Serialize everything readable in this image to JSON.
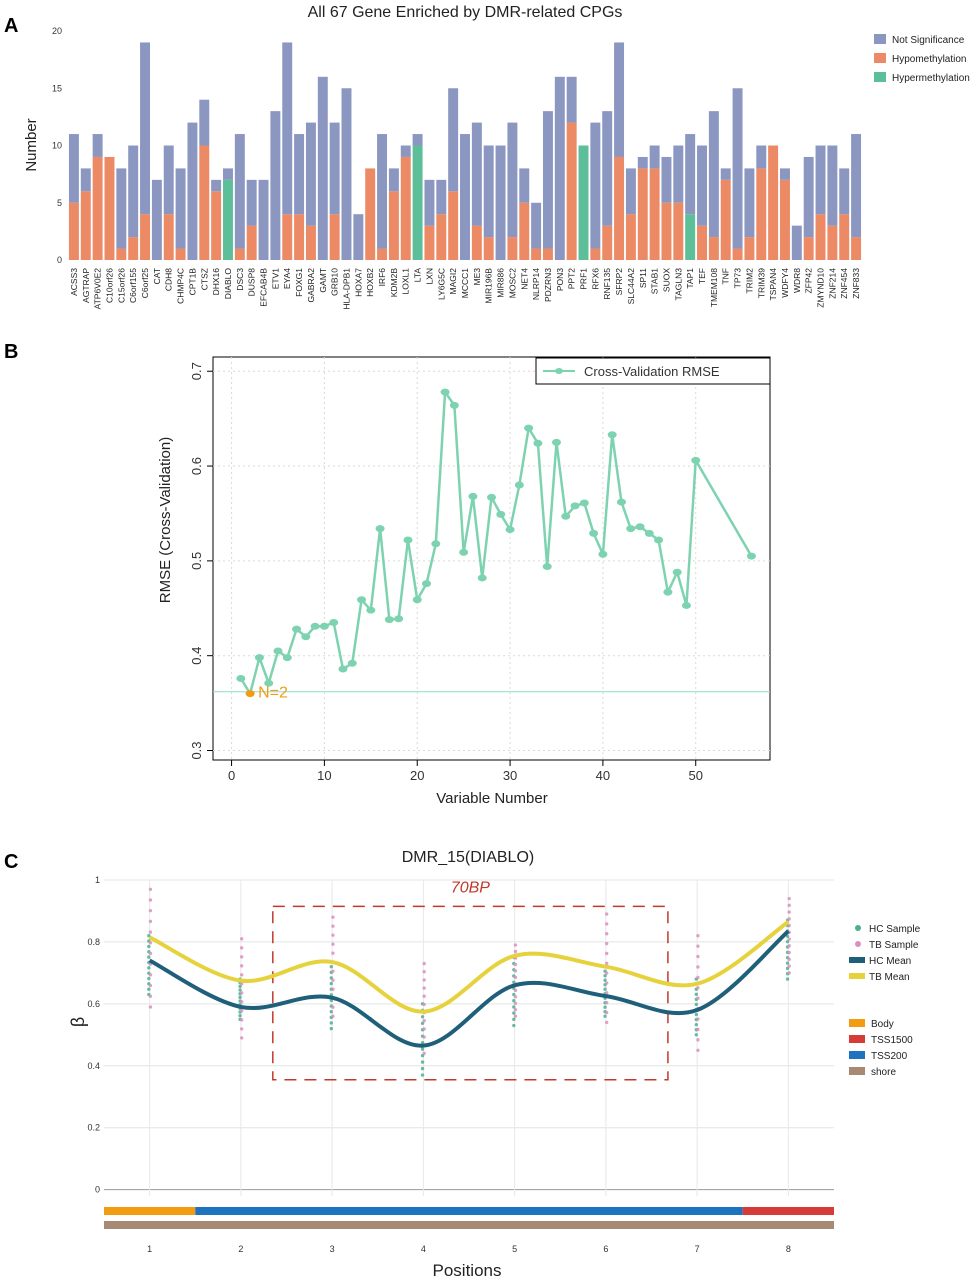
{
  "panels": {
    "a": "A",
    "b": "B",
    "c": "C"
  },
  "chart_data": [
    {
      "type": "bar",
      "stacked": true,
      "title": "All 67 Gene Enriched by DMR-related CPGs",
      "ylabel": "Number",
      "xlabel": "",
      "ylim": [
        0,
        20
      ],
      "yticks": [
        0,
        5,
        10,
        15,
        20
      ],
      "categories": [
        "ACSS3",
        "AGTRAP",
        "ATP6V0E2",
        "C10orf26",
        "C15orf26",
        "C6orf155",
        "C6orf25",
        "CAT",
        "CDH8",
        "CHMP4C",
        "CPT1B",
        "CTSZ",
        "DHX16",
        "DIABLO",
        "DSC3",
        "DUSP8",
        "EFCAB4B",
        "ETV1",
        "EYA4",
        "FOXG1",
        "GABRA2",
        "GAMT",
        "GRB10",
        "HLA-DPB1",
        "HOXA7",
        "HOXB2",
        "IRF6",
        "KDM2B",
        "LOXL1",
        "LTA",
        "LXN",
        "LY6G5C",
        "MAGI2",
        "MCCC1",
        "ME3",
        "MIR196B",
        "MIR886",
        "MOSC2",
        "NET4",
        "NLRP14",
        "PDZRN3",
        "PON3",
        "PPT2",
        "PRF1",
        "RFX6",
        "RNF135",
        "SFRP2",
        "SLC44A2",
        "SP11",
        "STAB1",
        "SUOX",
        "TAGLN3",
        "TAP1",
        "TEF",
        "TMEM108",
        "TNF",
        "TP73",
        "TRIM2",
        "TRIM39",
        "TSPAN4",
        "WDFY4",
        "WDR8",
        "ZFP42",
        "ZMYND10",
        "ZNF214",
        "ZNF454",
        "ZNF833"
      ],
      "series": [
        {
          "name": "Hypomethylation",
          "color": "#EC8A65",
          "values": [
            5,
            6,
            9,
            9,
            1,
            2,
            4,
            0,
            4,
            1,
            0,
            10,
            6,
            0,
            1,
            3,
            0,
            0,
            4,
            4,
            3,
            0,
            4,
            0,
            0,
            8,
            1,
            6,
            9,
            0,
            3,
            4,
            6,
            0,
            3,
            2,
            0,
            2,
            5,
            1,
            1,
            0,
            12,
            0,
            1,
            3,
            9,
            4,
            8,
            8,
            5,
            5,
            0,
            3,
            2,
            7,
            1,
            2,
            8,
            10,
            7,
            0,
            2,
            4,
            3,
            4,
            2
          ]
        },
        {
          "name": "Hypermethylation",
          "color": "#5DBF9A",
          "values": [
            0,
            0,
            0,
            0,
            0,
            0,
            0,
            0,
            0,
            0,
            0,
            0,
            0,
            7,
            0,
            0,
            0,
            0,
            0,
            0,
            0,
            0,
            0,
            0,
            0,
            0,
            0,
            0,
            0,
            10,
            0,
            0,
            0,
            0,
            0,
            0,
            0,
            0,
            0,
            0,
            0,
            0,
            0,
            10,
            0,
            0,
            0,
            0,
            0,
            0,
            0,
            0,
            4,
            0,
            0,
            0,
            0,
            0,
            0,
            0,
            0,
            0,
            0,
            0,
            0,
            0,
            0
          ]
        },
        {
          "name": "Not Significance",
          "color": "#8B97C1",
          "values": [
            6,
            2,
            2,
            0,
            7,
            8,
            15,
            7,
            6,
            7,
            12,
            4,
            1,
            1,
            10,
            4,
            7,
            13,
            15,
            7,
            9,
            16,
            8,
            15,
            4,
            0,
            10,
            2,
            1,
            1,
            4,
            3,
            9,
            11,
            9,
            8,
            10,
            10,
            3,
            4,
            12,
            16,
            4,
            0,
            11,
            10,
            10,
            4,
            1,
            2,
            4,
            5,
            7,
            7,
            11,
            1,
            14,
            6,
            2,
            0,
            1,
            3,
            7,
            6,
            7,
            4,
            9
          ]
        }
      ],
      "legend": "top-right"
    },
    {
      "type": "line",
      "title": "",
      "xlabel": "Variable Number",
      "ylabel": "RMSE (Cross-Validation)",
      "xlim": [
        -2,
        58
      ],
      "ylim": [
        0.29,
        0.715
      ],
      "xticks": [
        0,
        10,
        20,
        30,
        40,
        50
      ],
      "yticks": [
        0.3,
        0.4,
        0.5,
        0.6,
        0.7
      ],
      "grid": true,
      "series": [
        {
          "name": "Cross-Validation RMSE",
          "color": "#7DD3B0",
          "x": [
            1,
            2,
            3,
            4,
            5,
            6,
            7,
            8,
            9,
            10,
            11,
            12,
            13,
            14,
            15,
            16,
            17,
            18,
            19,
            20,
            21,
            22,
            23,
            24,
            25,
            26,
            27,
            28,
            29,
            30,
            31,
            32,
            33,
            34,
            35,
            36,
            37,
            38,
            39,
            40,
            41,
            42,
            43,
            44,
            45,
            46,
            47,
            48,
            49,
            50,
            56
          ],
          "y": [
            0.376,
            0.36,
            0.398,
            0.371,
            0.405,
            0.398,
            0.428,
            0.42,
            0.431,
            0.431,
            0.435,
            0.386,
            0.392,
            0.459,
            0.448,
            0.534,
            0.438,
            0.439,
            0.522,
            0.459,
            0.476,
            0.518,
            0.678,
            0.664,
            0.509,
            0.568,
            0.482,
            0.567,
            0.549,
            0.533,
            0.58,
            0.64,
            0.624,
            0.494,
            0.625,
            0.547,
            0.558,
            0.561,
            0.529,
            0.507,
            0.633,
            0.562,
            0.534,
            0.536,
            0.529,
            0.522,
            0.467,
            0.488,
            0.453,
            0.606,
            0.505
          ]
        }
      ],
      "hline": 0.362,
      "annotation": {
        "text": "N=2",
        "x": 2,
        "y": 0.362,
        "color": "#F39C12"
      },
      "legend": "top-right"
    },
    {
      "type": "line",
      "title": "DMR_15(DIABLO)",
      "xlabel": "Positions",
      "ylabel": "β",
      "xlim": [
        0.5,
        8.5
      ],
      "ylim": [
        -0.04,
        1.0
      ],
      "xticks": [
        1,
        2,
        3,
        4,
        5,
        6,
        7,
        8
      ],
      "yticks": [
        0,
        0.2,
        0.4,
        0.6,
        0.8,
        1
      ],
      "grid": true,
      "annotation": {
        "text": "70BP",
        "color": "#C0392B"
      },
      "series": [
        {
          "name": "HC Mean",
          "color": "#1F5F7A",
          "x": [
            1,
            2,
            3,
            4,
            5,
            6,
            7,
            8
          ],
          "y": [
            0.74,
            0.59,
            0.62,
            0.465,
            0.66,
            0.625,
            0.58,
            0.835
          ]
        },
        {
          "name": "TB Mean",
          "color": "#E6D23C",
          "x": [
            1,
            2,
            3,
            4,
            5,
            6,
            7,
            8
          ],
          "y": [
            0.815,
            0.675,
            0.735,
            0.575,
            0.755,
            0.72,
            0.665,
            0.865
          ]
        }
      ],
      "samples": [
        {
          "name": "HC Sample",
          "color": "#4CAF8E",
          "x": [
            1,
            2,
            3,
            4,
            5,
            6,
            7,
            8
          ],
          "min": [
            0.63,
            0.55,
            0.52,
            0.37,
            0.53,
            0.56,
            0.5,
            0.68
          ],
          "max": [
            0.82,
            0.68,
            0.72,
            0.6,
            0.75,
            0.72,
            0.68,
            0.87
          ]
        },
        {
          "name": "TB Sample",
          "color": "#D98FBF",
          "x": [
            1,
            2,
            3,
            4,
            5,
            6,
            7,
            8
          ],
          "min": [
            0.59,
            0.49,
            0.56,
            0.44,
            0.56,
            0.54,
            0.45,
            0.7
          ],
          "max": [
            0.97,
            0.81,
            0.88,
            0.73,
            0.79,
            0.89,
            0.82,
            0.94
          ]
        }
      ],
      "annotation_tracks": [
        {
          "name": "Body",
          "color": "#F39C12",
          "segments": [
            [
              0.5,
              1.5
            ]
          ]
        },
        {
          "name": "TSS1500",
          "color": "#D63B37",
          "segments": [
            [
              7.5,
              8.5
            ]
          ]
        },
        {
          "name": "TSS200",
          "color": "#1E73BE",
          "segments": [
            [
              1.5,
              7.5
            ]
          ]
        },
        {
          "name": "shore",
          "color": "#A88A74",
          "segments": [
            [
              0.5,
              8.5
            ]
          ]
        }
      ],
      "legend": "right"
    }
  ]
}
